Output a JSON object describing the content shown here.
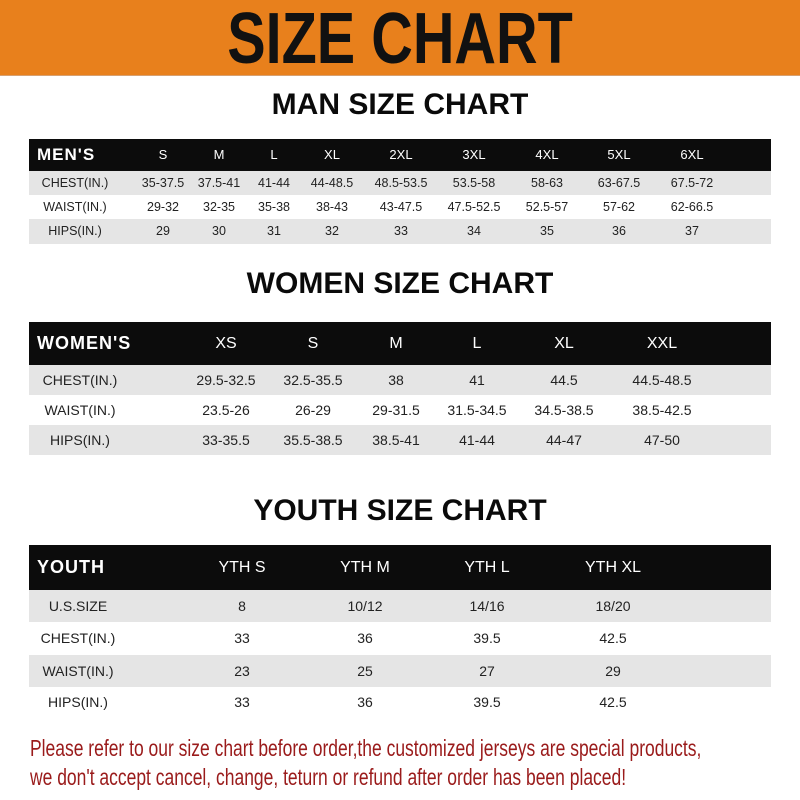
{
  "title": "SIZE CHART",
  "colors": {
    "banner": "#e8801c",
    "header_row": "#0c0c0c",
    "alt_row": "#e5e5e5",
    "note": "#9a1b1b"
  },
  "men": {
    "title": "MAN SIZE CHART",
    "header": [
      "MEN'S",
      "S",
      "M",
      "L",
      "XL",
      "2XL",
      "3XL",
      "4XL",
      "5XL",
      "6XL"
    ],
    "rows": [
      [
        "CHEST(IN.)",
        "35-37.5",
        "37.5-41",
        "41-44",
        "44-48.5",
        "48.5-53.5",
        "53.5-58",
        "58-63",
        "63-67.5",
        "67.5-72"
      ],
      [
        "WAIST(IN.)",
        "29-32",
        "32-35",
        "35-38",
        "38-43",
        "43-47.5",
        "47.5-52.5",
        "52.5-57",
        "57-62",
        "62-66.5"
      ],
      [
        "HIPS(IN.)",
        "29",
        "30",
        "31",
        "32",
        "33",
        "34",
        "35",
        "36",
        "37"
      ]
    ]
  },
  "women": {
    "title": "WOMEN SIZE CHART",
    "header": [
      "WOMEN'S",
      "XS",
      "S",
      "M",
      "L",
      "XL",
      "XXL"
    ],
    "rows": [
      [
        "CHEST(IN.)",
        "29.5-32.5",
        "32.5-35.5",
        "38",
        "41",
        "44.5",
        "44.5-48.5"
      ],
      [
        "WAIST(IN.)",
        "23.5-26",
        "26-29",
        "29-31.5",
        "31.5-34.5",
        "34.5-38.5",
        "38.5-42.5"
      ],
      [
        "HIPS(IN.)",
        "33-35.5",
        "35.5-38.5",
        "38.5-41",
        "41-44",
        "44-47",
        "47-50"
      ]
    ]
  },
  "youth": {
    "title": "YOUTH SIZE CHART",
    "header": [
      "YOUTH",
      "YTH S",
      "YTH M",
      "YTH L",
      "YTH XL"
    ],
    "rows": [
      [
        "U.S.SIZE",
        "8",
        "10/12",
        "14/16",
        "18/20"
      ],
      [
        "CHEST(IN.)",
        "33",
        "36",
        "39.5",
        "42.5"
      ],
      [
        "WAIST(IN.)",
        "23",
        "25",
        "27",
        "29"
      ],
      [
        "HIPS(IN.)",
        "33",
        "36",
        "39.5",
        "42.5"
      ]
    ]
  },
  "note": {
    "line1": "Please refer to our size chart before order,the customized jerseys are special products,",
    "line2": "we don't accept cancel, change, teturn or refund after order has been placed!"
  }
}
